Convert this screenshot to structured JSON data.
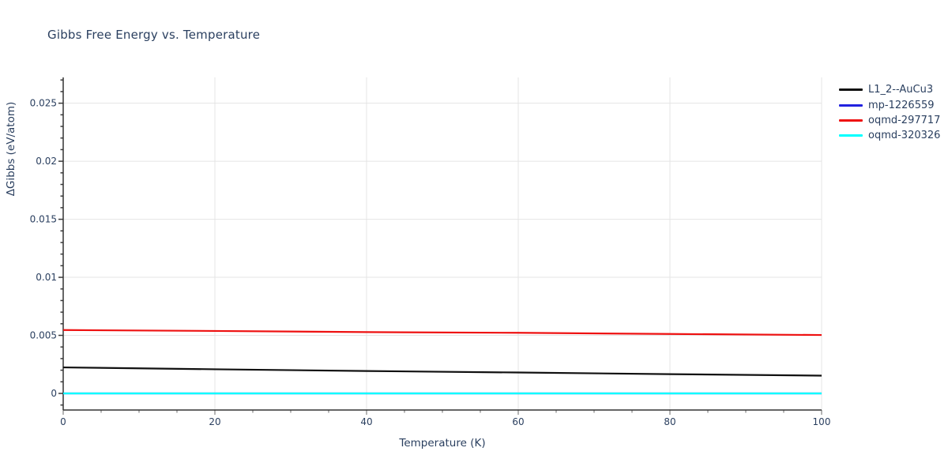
{
  "chart_data": {
    "type": "line",
    "title": "Gibbs Free Energy vs. Temperature",
    "xlabel": "Temperature (K)",
    "ylabel": "ΔGibbs (eV/atom)",
    "x": [
      0,
      20,
      40,
      60,
      80,
      100
    ],
    "series": [
      {
        "name": "L1_2--AuCu3",
        "color": "#111111",
        "values": [
          0.00224,
          0.00208,
          0.00193,
          0.0018,
          0.00166,
          0.00153
        ]
      },
      {
        "name": "mp-1226559",
        "color": "#2222e0",
        "values": [
          0,
          0,
          0,
          0,
          0,
          0
        ]
      },
      {
        "name": "oqmd-297717",
        "color": "#ee1111",
        "values": [
          0.00546,
          0.00538,
          0.00528,
          0.00522,
          0.00512,
          0.00503
        ]
      },
      {
        "name": "oqmd-320326",
        "color": "#00ffff",
        "values": [
          0,
          0,
          0,
          0,
          0,
          0
        ]
      }
    ],
    "xlim": [
      0,
      100
    ],
    "ylim": [
      -0.00143,
      0.02722
    ],
    "xticks": [
      0,
      20,
      40,
      60,
      80,
      100
    ],
    "xtick_labels": [
      "0",
      "20",
      "40",
      "60",
      "80",
      "100"
    ],
    "yticks": [
      0,
      0.005,
      0.01,
      0.015,
      0.02,
      0.025
    ],
    "ytick_labels": [
      "0",
      "0.005",
      "0.01",
      "0.015",
      "0.02",
      "0.025"
    ],
    "x_minor_step": 5,
    "y_minor_step": 0.001,
    "grid": true,
    "legend_position": "top-right",
    "colors": {
      "text": "#2a3f5f",
      "grid": "#e4e4e4",
      "axis": "#333333",
      "y_tick": "#3a3a3a",
      "x_tick": "#9a9a9a",
      "background": "#ffffff"
    }
  }
}
